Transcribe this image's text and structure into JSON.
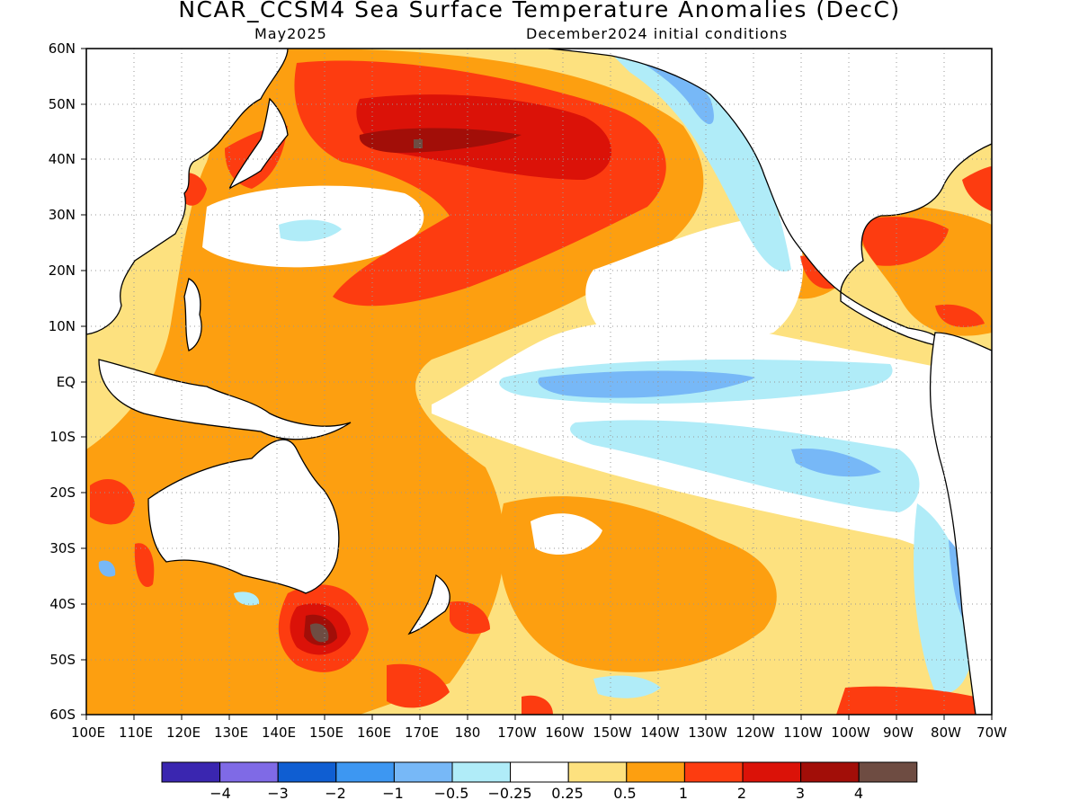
{
  "title": "NCAR_CCSM4 Sea Surface Temperature Anomalies (DecC)",
  "subtitle_left": "May2025",
  "subtitle_right": "December2024 initial conditions",
  "lat_labels": [
    "60N",
    "50N",
    "40N",
    "30N",
    "20N",
    "10N",
    "EQ",
    "10S",
    "20S",
    "30S",
    "40S",
    "50S",
    "60S"
  ],
  "lon_labels": [
    "100E",
    "110E",
    "120E",
    "130E",
    "140E",
    "150E",
    "160E",
    "170E",
    "180",
    "170W",
    "160W",
    "150W",
    "140W",
    "130W",
    "120W",
    "110W",
    "100W",
    "90W",
    "80W",
    "70W"
  ],
  "colorbar": {
    "colors": [
      "#3a26b0",
      "#7f6ae6",
      "#0f5ed2",
      "#3d97f2",
      "#77b8f7",
      "#b0ecf8",
      "#ffffff",
      "#fde17f",
      "#fd9f10",
      "#fd3c10",
      "#db1208",
      "#a20e08",
      "#6e4c42"
    ],
    "tick_labels": [
      "−4",
      "−3",
      "−2",
      "−1",
      "−0.5",
      "−0.25",
      "0.25",
      "0.5",
      "1",
      "2",
      "3",
      "4"
    ]
  },
  "legend_colors": {
    "land": "#ffffff",
    "ocean_neutral": "#ffffff",
    "warm_0_25": "#fde17f",
    "warm_0_5": "#fd9f10",
    "warm_1": "#fd3c10",
    "warm_2": "#db1208",
    "warm_3": "#a20e08",
    "warm_4": "#6e4c42",
    "cool_0_25": "#b0ecf8",
    "cool_0_5": "#77b8f7"
  }
}
